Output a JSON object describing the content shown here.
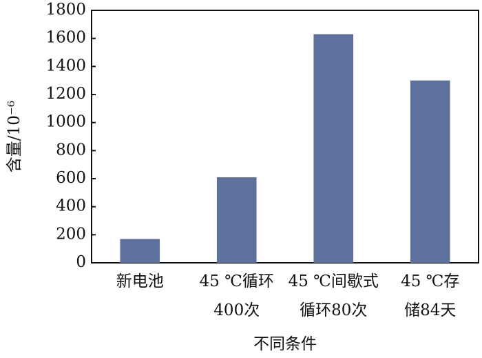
{
  "chart_data": {
    "type": "bar",
    "categories": [
      [
        "新电池"
      ],
      [
        "45 ℃循环",
        "400次"
      ],
      [
        "45 ℃间歇式",
        "循环80次"
      ],
      [
        "45 ℃存",
        "储84天"
      ]
    ],
    "values": [
      170,
      610,
      1630,
      1300
    ],
    "color": "#5e719d",
    "ylabel": "含量/10⁻⁶",
    "xlabel": "不同条件",
    "ylim": [
      0,
      1800
    ],
    "yticks": [
      0,
      200,
      400,
      600,
      800,
      1000,
      1200,
      1400,
      1600,
      1800
    ]
  }
}
